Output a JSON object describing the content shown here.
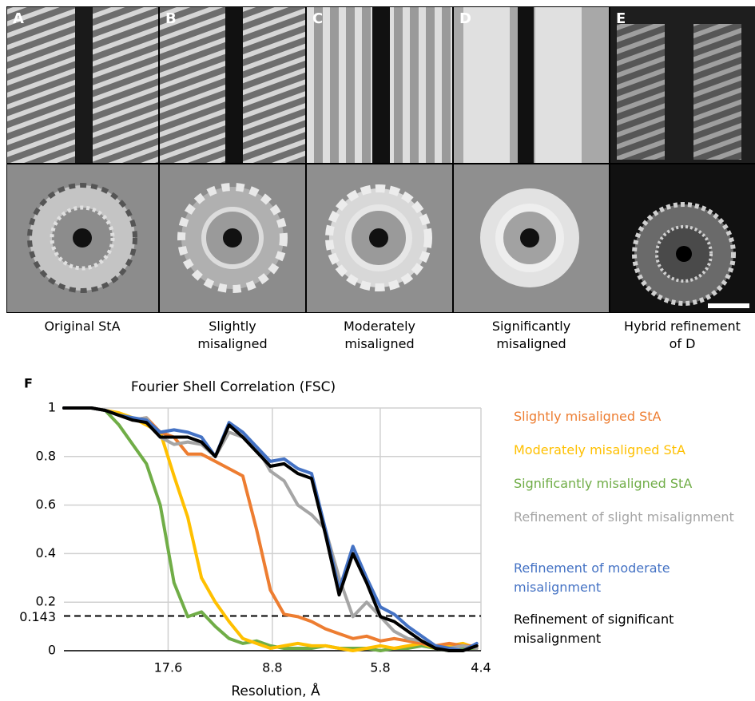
{
  "panels": [
    {
      "label": "A",
      "caption": "Original StA"
    },
    {
      "label": "B",
      "caption": "Slightly misaligned"
    },
    {
      "label": "C",
      "caption": "Moderately misaligned"
    },
    {
      "label": "D",
      "caption": "Significantly misaligned"
    },
    {
      "label": "E",
      "caption": "Hybrid refinement of D"
    }
  ],
  "chart_label": "F",
  "chart_data": {
    "type": "line",
    "title": "Fourier Shell Correlation (FSC)",
    "x_label": "Resolution, Å",
    "x": [
      0,
      0.0075,
      0.015,
      0.0225,
      0.03,
      0.0375,
      0.045,
      0.0525,
      0.06,
      0.0675,
      0.075,
      0.0825,
      0.09,
      0.0975,
      0.105,
      0.1125,
      0.12,
      0.1275,
      0.135,
      0.1425,
      0.15,
      0.1575,
      0.165,
      0.1725,
      0.18,
      0.1875,
      0.195,
      0.2025,
      0.21,
      0.2175,
      0.225
    ],
    "xlim": [
      0,
      0.2273
    ],
    "xticks": [
      {
        "value": 0.0568,
        "label": "17.6"
      },
      {
        "value": 0.1136,
        "label": "8.8"
      },
      {
        "value": 0.1724,
        "label": "5.8"
      },
      {
        "value": 0.2273,
        "label": "4.4"
      }
    ],
    "ylim": [
      0,
      1
    ],
    "yticks": [
      0,
      0.2,
      0.4,
      0.6,
      0.8,
      1
    ],
    "threshold": 0.143,
    "grid": true,
    "series": [
      {
        "name": "Slightly misaligned StA",
        "color": "#ed7d31",
        "values": [
          1,
          1,
          1,
          0.99,
          0.97,
          0.95,
          0.96,
          0.9,
          0.88,
          0.81,
          0.81,
          0.78,
          0.75,
          0.72,
          0.5,
          0.25,
          0.15,
          0.14,
          0.12,
          0.09,
          0.07,
          0.05,
          0.06,
          0.04,
          0.05,
          0.04,
          0.03,
          0.02,
          0.03,
          0.02,
          0.02
        ]
      },
      {
        "name": "Moderately misaligned StA",
        "color": "#ffc000",
        "values": [
          1,
          1,
          1,
          0.99,
          0.98,
          0.96,
          0.93,
          0.9,
          0.72,
          0.55,
          0.3,
          0.2,
          0.12,
          0.05,
          0.03,
          0.01,
          0.02,
          0.03,
          0.02,
          0.02,
          0.01,
          0,
          0.01,
          0.02,
          0.01,
          0.02,
          0.03,
          0.01,
          0.02,
          0.03,
          0.01
        ]
      },
      {
        "name": "Significantly misaligned StA",
        "color": "#70ad47",
        "values": [
          1,
          1,
          1,
          0.99,
          0.93,
          0.85,
          0.77,
          0.6,
          0.28,
          0.14,
          0.16,
          0.1,
          0.05,
          0.03,
          0.04,
          0.02,
          0.01,
          0.01,
          0.01,
          0.02,
          0.01,
          0.01,
          0.01,
          0,
          0.01,
          0.01,
          0.02,
          0.01,
          0,
          0.01,
          0.01
        ]
      },
      {
        "name": "Refinement of slight misalignment",
        "color": "#a5a5a5",
        "values": [
          1,
          1,
          1,
          0.99,
          0.97,
          0.95,
          0.96,
          0.88,
          0.85,
          0.86,
          0.85,
          0.8,
          0.9,
          0.88,
          0.84,
          0.74,
          0.7,
          0.6,
          0.56,
          0.5,
          0.3,
          0.14,
          0.2,
          0.14,
          0.08,
          0.05,
          0.04,
          0.02,
          0.01,
          0.02,
          0.01
        ]
      },
      {
        "name": "Refinement of moderate misalignment",
        "color": "#4472c4",
        "values": [
          1,
          1,
          1,
          0.99,
          0.97,
          0.96,
          0.95,
          0.9,
          0.91,
          0.9,
          0.88,
          0.8,
          0.94,
          0.9,
          0.84,
          0.78,
          0.79,
          0.75,
          0.73,
          0.5,
          0.25,
          0.43,
          0.3,
          0.18,
          0.15,
          0.1,
          0.06,
          0.02,
          0.01,
          0,
          0.03
        ]
      },
      {
        "name": "Refinement of significant misalignment",
        "color": "#000000",
        "values": [
          1,
          1,
          1,
          0.99,
          0.97,
          0.95,
          0.94,
          0.88,
          0.88,
          0.88,
          0.86,
          0.8,
          0.93,
          0.88,
          0.82,
          0.76,
          0.77,
          0.73,
          0.71,
          0.48,
          0.23,
          0.4,
          0.28,
          0.14,
          0.12,
          0.08,
          0.04,
          0.01,
          0,
          0,
          0.02
        ]
      }
    ]
  }
}
